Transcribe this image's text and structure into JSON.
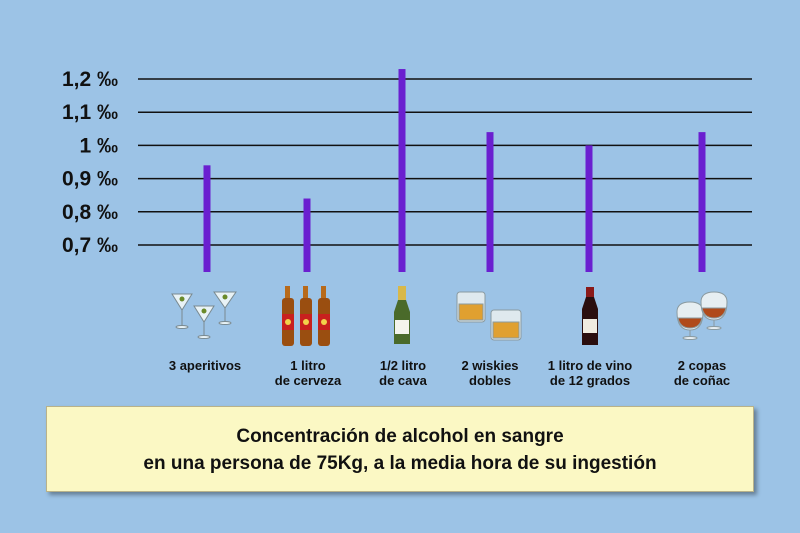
{
  "chart_data": {
    "type": "bar",
    "categories": [
      "3 aperitivos",
      "1 litro\nde cerveza",
      "1/2 litro\nde cava",
      "2 wiskies\ndobles",
      "1 litro de vino\nde 12 grados",
      "2 copas\nde coñac"
    ],
    "values": [
      0.94,
      0.84,
      1.23,
      1.04,
      1.0,
      1.04
    ],
    "yticks": [
      0.7,
      0.8,
      0.9,
      1.0,
      1.1,
      1.2
    ],
    "ytick_labels": [
      "0,7 ‰",
      "0,8 ‰",
      "0,9 ‰",
      "1 ‰",
      "1,1 ‰",
      "1,2 ‰"
    ],
    "ylim": [
      0.7,
      1.2
    ],
    "grid": true,
    "bar_color": "#6a1fd0",
    "icons": [
      "martini-glasses-icon",
      "beer-bottles-icon",
      "champagne-bottle-icon",
      "whisky-glasses-icon",
      "wine-bottle-icon",
      "cognac-glasses-icon"
    ]
  },
  "caption": {
    "line1": "Concentración de alcohol en sangre",
    "line2": "en una persona de 75Kg, a la media hora de su ingestión"
  },
  "colors": {
    "background": "#9cc3e6",
    "caption_bg": "#fbf8c4",
    "grid": "#111111"
  }
}
